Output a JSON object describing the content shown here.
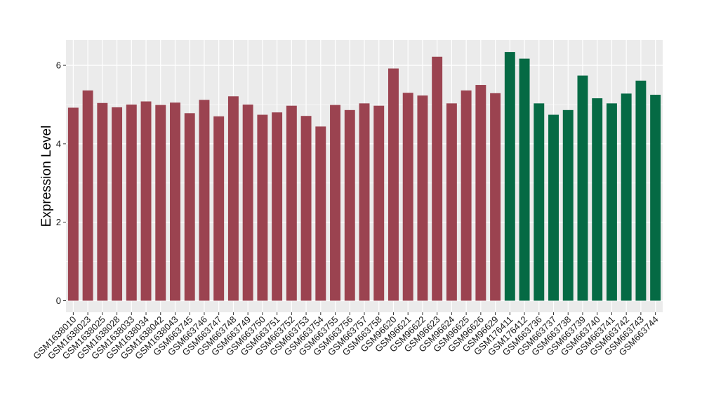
{
  "chart_data": {
    "type": "bar",
    "title": "",
    "xlabel": "",
    "ylabel": "Expression Level",
    "ylim": [
      -0.3,
      6.65
    ],
    "yticks": [
      0,
      2,
      4,
      6
    ],
    "grid": true,
    "legend": "none",
    "categories": [
      "GSM1638010",
      "GSM1638023",
      "GSM1638025",
      "GSM1638028",
      "GSM1638033",
      "GSM1638034",
      "GSM1638042",
      "GSM1638043",
      "GSM663745",
      "GSM663746",
      "GSM663747",
      "GSM663748",
      "GSM663749",
      "GSM663750",
      "GSM663751",
      "GSM663752",
      "GSM663753",
      "GSM663754",
      "GSM663755",
      "GSM663756",
      "GSM663757",
      "GSM663758",
      "GSM96620",
      "GSM96621",
      "GSM96622",
      "GSM96623",
      "GSM96624",
      "GSM96625",
      "GSM96626",
      "GSM96629",
      "GSM176411",
      "GSM176412",
      "GSM663736",
      "GSM663737",
      "GSM663738",
      "GSM663739",
      "GSM663740",
      "GSM663741",
      "GSM663742",
      "GSM663743",
      "GSM663744"
    ],
    "values": [
      4.92,
      5.36,
      5.04,
      4.93,
      5.0,
      5.08,
      4.99,
      5.05,
      4.78,
      5.12,
      4.7,
      5.21,
      5.0,
      4.74,
      4.8,
      4.97,
      4.71,
      4.44,
      4.99,
      4.86,
      5.03,
      4.97,
      5.92,
      5.3,
      5.23,
      6.22,
      5.03,
      5.36,
      5.5,
      5.29,
      6.34,
      6.17,
      5.03,
      4.74,
      4.86,
      5.74,
      5.16,
      5.03,
      5.28,
      5.61,
      5.25
    ],
    "groups": [
      "a",
      "a",
      "a",
      "a",
      "a",
      "a",
      "a",
      "a",
      "a",
      "a",
      "a",
      "a",
      "a",
      "a",
      "a",
      "a",
      "a",
      "a",
      "a",
      "a",
      "a",
      "a",
      "a",
      "a",
      "a",
      "a",
      "a",
      "a",
      "a",
      "a",
      "b",
      "b",
      "b",
      "b",
      "b",
      "b",
      "b",
      "b",
      "b",
      "b",
      "b"
    ],
    "colors": {
      "a": "#9B4350",
      "b": "#056A44"
    },
    "panel_background": "#EBEBEB",
    "grid_color": "#FFFFFF"
  }
}
